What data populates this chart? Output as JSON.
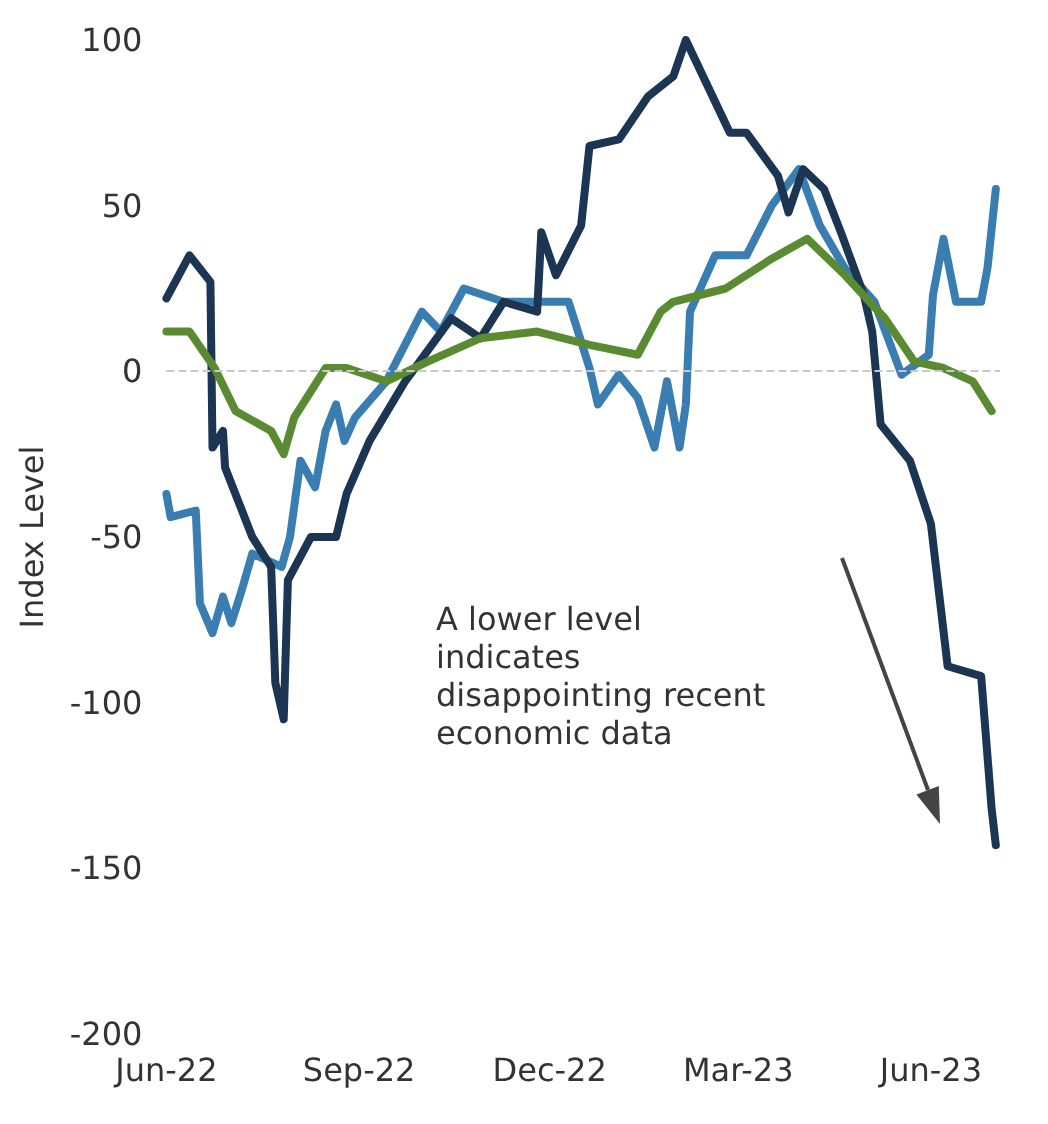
{
  "chart_data": {
    "type": "line",
    "ylabel": "Index Level",
    "annotations": [
      "A lower level\nindicates\ndisappointing recent\neconomic data"
    ],
    "xlim": [
      "2022-06-01",
      "2023-07-04"
    ],
    "xticks": [
      {
        "value": "2022-06-01",
        "label": "Jun-22"
      },
      {
        "value": "2022-09-01",
        "label": "Sep-22"
      },
      {
        "value": "2022-12-01",
        "label": "Dec-22"
      },
      {
        "value": "2023-03-01",
        "label": "Mar-23"
      },
      {
        "value": "2023-06-01",
        "label": "Jun-23"
      }
    ],
    "ylim": [
      -200,
      100
    ],
    "yticks": [
      -200,
      -150,
      -100,
      -50,
      0,
      50,
      100
    ],
    "grid": false,
    "marker": "none",
    "line_style": "solid",
    "ref_lines": [
      {
        "axis": "y",
        "value": 0,
        "color": "#c8c8c8",
        "line_style": "dashed"
      }
    ],
    "series": [
      {
        "color": "#3a7db0",
        "x": [
          "2022-06-01",
          "2022-06-03",
          "2022-06-15",
          "2022-06-17",
          "2022-06-23",
          "2022-06-28",
          "2022-07-02",
          "2022-07-07",
          "2022-07-12",
          "2022-07-26",
          "2022-07-30",
          "2022-08-04",
          "2022-08-11",
          "2022-08-16",
          "2022-08-21",
          "2022-08-25",
          "2022-08-30",
          "2022-09-14",
          "2022-10-01",
          "2022-10-10",
          "2022-10-21",
          "2022-11-09",
          "2022-12-10",
          "2022-12-20",
          "2022-12-24",
          "2023-01-03",
          "2023-01-12",
          "2023-01-20",
          "2023-01-26",
          "2023-02-01",
          "2023-02-04",
          "2023-02-06",
          "2023-02-18",
          "2023-03-05",
          "2023-03-17",
          "2023-03-30",
          "2023-04-09",
          "2023-04-21",
          "2023-05-05",
          "2023-05-18",
          "2023-05-31",
          "2023-06-02",
          "2023-06-07",
          "2023-06-13",
          "2023-06-25",
          "2023-06-28",
          "2023-07-02"
        ],
        "values": [
          -37,
          -44,
          -42,
          -70,
          -79,
          -68,
          -76,
          -66,
          -55,
          -59,
          -50,
          -27,
          -35,
          -18,
          -10,
          -21,
          -14,
          -3,
          18,
          12,
          25,
          21,
          21,
          1,
          -10,
          -1,
          -8,
          -23,
          -3,
          -23,
          -10,
          18,
          35,
          35,
          50,
          61,
          44,
          31,
          21,
          -1,
          5,
          23,
          40,
          21,
          21,
          31,
          55
        ]
      },
      {
        "color": "#1c3553",
        "x": [
          "2022-06-01",
          "2022-06-12",
          "2022-06-22",
          "2022-06-23",
          "2022-06-28",
          "2022-06-29",
          "2022-07-12",
          "2022-07-21",
          "2022-07-23",
          "2022-07-27",
          "2022-07-29",
          "2022-08-09",
          "2022-08-21",
          "2022-08-26",
          "2022-09-06",
          "2022-09-23",
          "2022-10-15",
          "2022-10-29",
          "2022-11-09",
          "2022-11-25",
          "2022-11-27",
          "2022-12-04",
          "2022-12-16",
          "2022-12-20",
          "2023-01-03",
          "2023-01-17",
          "2023-01-29",
          "2023-02-04",
          "2023-02-25",
          "2023-03-05",
          "2023-03-20",
          "2023-03-25",
          "2023-04-01",
          "2023-04-11",
          "2023-04-19",
          "2023-04-30",
          "2023-05-04",
          "2023-05-08",
          "2023-05-22",
          "2023-06-01",
          "2023-06-09",
          "2023-06-25",
          "2023-06-30",
          "2023-07-02"
        ],
        "values": [
          22,
          35,
          27,
          -23,
          -18,
          -29,
          -50,
          -59,
          -94,
          -105,
          -63,
          -50,
          -50,
          -37,
          -21,
          -3,
          16,
          10,
          21,
          18,
          42,
          29,
          44,
          68,
          70,
          83,
          89,
          100,
          72,
          72,
          59,
          48,
          61,
          55,
          42,
          23,
          12,
          -16,
          -27,
          -46,
          -89,
          -92,
          -132,
          -143
        ]
      },
      {
        "color": "#5a8a32",
        "x": [
          "2022-06-01",
          "2022-06-12",
          "2022-06-24",
          "2022-07-04",
          "2022-07-21",
          "2022-07-27",
          "2022-08-01",
          "2022-08-16",
          "2022-08-26",
          "2022-09-14",
          "2022-10-04",
          "2022-10-29",
          "2022-11-25",
          "2022-12-20",
          "2023-01-12",
          "2023-01-23",
          "2023-01-29",
          "2023-02-23",
          "2023-03-17",
          "2023-04-03",
          "2023-04-21",
          "2023-05-10",
          "2023-05-24",
          "2023-06-07",
          "2023-06-21",
          "2023-06-30"
        ],
        "values": [
          12,
          12,
          1,
          -12,
          -18,
          -25,
          -14,
          1,
          1,
          -3,
          3,
          10,
          12,
          8,
          5,
          18,
          21,
          25,
          34,
          40,
          29,
          16,
          3,
          1,
          -3,
          -12
        ]
      }
    ]
  }
}
